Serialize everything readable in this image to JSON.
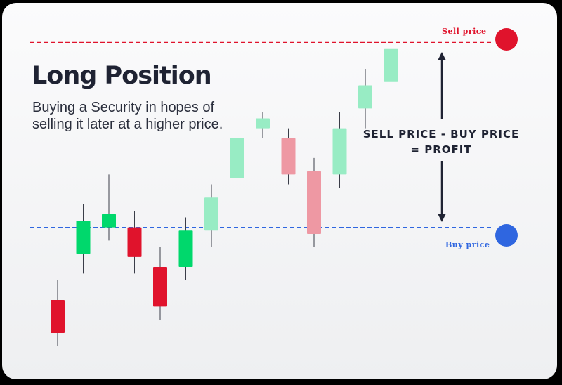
{
  "title": "Long Position",
  "subtitle_line1": "Buying a Security in hopes of",
  "subtitle_line2": "selling it later at a higher price.",
  "formula_line1": "SELL PRICE - BUY PRICE",
  "formula_line2": "= PROFIT",
  "sell_label": "Sell price",
  "buy_label": "Buy price",
  "colors": {
    "sell": "#e0132c",
    "buy": "#2f66e0",
    "bullish": "#00d86c",
    "bearish": "#e0132c",
    "bullish_faded": "#98ecc4",
    "bearish_faded": "#ee98a3",
    "arrow": "#1f2333",
    "wick": "#3a3d48"
  },
  "candles": [
    {
      "open": 5,
      "close": 0,
      "high": 8,
      "low": -2,
      "faded": false
    },
    {
      "open": 12,
      "close": 17,
      "high": 19.5,
      "low": 9,
      "faded": false
    },
    {
      "open": 16,
      "close": 18,
      "high": 24,
      "low": 14,
      "faded": false
    },
    {
      "open": 16,
      "close": 11.5,
      "high": 18.5,
      "low": 9,
      "faded": false
    },
    {
      "open": 10,
      "close": 4,
      "high": 13,
      "low": 2,
      "faded": false
    },
    {
      "open": 10,
      "close": 15.5,
      "high": 17.5,
      "low": 8,
      "faded": false
    },
    {
      "open": 15.5,
      "close": 20.5,
      "high": 22.5,
      "low": 13,
      "faded": true
    },
    {
      "open": 23.5,
      "close": 29.5,
      "high": 31.5,
      "low": 21.5,
      "faded": true
    },
    {
      "open": 31,
      "close": 32.5,
      "high": 33.5,
      "low": 29.5,
      "faded": true
    },
    {
      "open": 29.5,
      "close": 24,
      "high": 31,
      "low": 22.5,
      "faded": true
    },
    {
      "open": 24.5,
      "close": 15,
      "high": 26.5,
      "low": 13,
      "faded": true
    },
    {
      "open": 24,
      "close": 31,
      "high": 33.5,
      "low": 22,
      "faded": true
    },
    {
      "open": 34,
      "close": 37.5,
      "high": 40,
      "low": 31,
      "faded": true
    },
    {
      "open": 38,
      "close": 43,
      "high": 46.5,
      "low": 35,
      "faded": true
    }
  ],
  "sell_price": 44,
  "buy_price": 16
}
